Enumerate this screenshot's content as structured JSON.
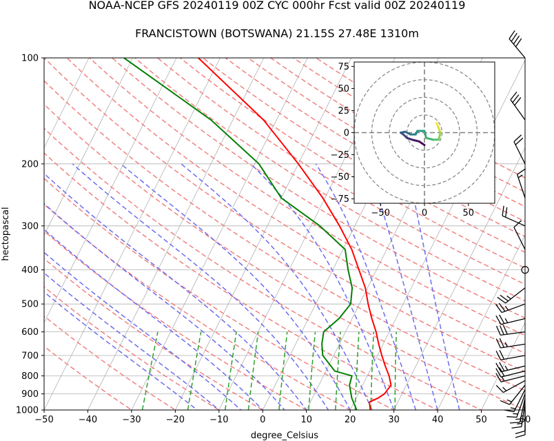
{
  "title_line1": "NOAA-NCEP GFS 20240119 00Z CYC 000hr Fcst valid 00Z 20240119",
  "title_line2": "FRANCISTOWN (BOTSWANA) 21.15S 27.48E 1310m",
  "chart_data": [
    {
      "type": "line",
      "subtype": "skew-t log-p",
      "xlabel": "degree_Celsius",
      "ylabel": "hectopascal",
      "xlim": [
        -50,
        60
      ],
      "ylim": [
        1000,
        100
      ],
      "y_scale": "log",
      "x_ticks": [
        -50,
        -40,
        -30,
        -20,
        -10,
        0,
        10,
        20,
        30,
        40,
        50,
        60
      ],
      "y_ticks": [
        1000,
        900,
        800,
        700,
        600,
        500,
        400,
        300,
        200,
        100
      ],
      "grid": true,
      "series": [
        {
          "role": "temperature",
          "color": "#ff0000",
          "points": [
            [
              1000,
              24.6
            ],
            [
              950,
              23.5
            ],
            [
              925,
              25.0
            ],
            [
              900,
              26.0
            ],
            [
              850,
              26.5
            ],
            [
              800,
              25.0
            ],
            [
              750,
              23.0
            ],
            [
              700,
              21.0
            ],
            [
              650,
              19.0
            ],
            [
              600,
              17.0
            ],
            [
              550,
              14.5
            ],
            [
              500,
              12.0
            ],
            [
              450,
              9.5
            ],
            [
              400,
              6.0
            ],
            [
              350,
              2.0
            ],
            [
              300,
              -3.5
            ],
            [
              250,
              -10.5
            ],
            [
              200,
              -20.0
            ],
            [
              150,
              -33.0
            ],
            [
              100,
              -55.0
            ]
          ]
        },
        {
          "role": "dewpoint",
          "color": "#008000",
          "points": [
            [
              1000,
              21.5
            ],
            [
              925,
              19.0
            ],
            [
              850,
              17.0
            ],
            [
              800,
              16.5
            ],
            [
              775,
              12.0
            ],
            [
              700,
              7.5
            ],
            [
              650,
              6.0
            ],
            [
              600,
              5.0
            ],
            [
              550,
              7.0
            ],
            [
              500,
              8.0
            ],
            [
              450,
              6.5
            ],
            [
              400,
              3.5
            ],
            [
              350,
              0.5
            ],
            [
              300,
              -8.0
            ],
            [
              250,
              -20.0
            ],
            [
              200,
              -29.0
            ],
            [
              150,
              -45.0
            ],
            [
              100,
              -72.0
            ]
          ]
        }
      ],
      "wind_barbs": [
        {
          "p": 1000,
          "u": 0,
          "v": 10
        },
        {
          "p": 975,
          "u": 0,
          "v": 12
        },
        {
          "p": 950,
          "u": 2,
          "v": 14
        },
        {
          "p": 925,
          "u": 3,
          "v": 14
        },
        {
          "p": 900,
          "u": 5,
          "v": 14
        },
        {
          "p": 875,
          "u": 6,
          "v": 12
        },
        {
          "p": 850,
          "u": 8,
          "v": 10
        },
        {
          "p": 825,
          "u": 11,
          "v": 6
        },
        {
          "p": 800,
          "u": 16,
          "v": 4
        },
        {
          "p": 775,
          "u": 20,
          "v": 5
        },
        {
          "p": 750,
          "u": 25,
          "v": 6
        },
        {
          "p": 700,
          "u": 22,
          "v": 4
        },
        {
          "p": 650,
          "u": 26,
          "v": 4
        },
        {
          "p": 600,
          "u": 30,
          "v": 4
        },
        {
          "p": 550,
          "u": 25,
          "v": 6
        },
        {
          "p": 500,
          "u": 22,
          "v": 8
        },
        {
          "p": 450,
          "u": 18,
          "v": 14
        },
        {
          "p": 400,
          "u": 0,
          "v": 0
        },
        {
          "p": 350,
          "u": 5,
          "v": -10
        },
        {
          "p": 300,
          "u": 18,
          "v": -8
        },
        {
          "p": 250,
          "u": 5,
          "v": -15
        },
        {
          "p": 200,
          "u": 10,
          "v": -20
        },
        {
          "p": 150,
          "u": 18,
          "v": -25
        },
        {
          "p": 100,
          "u": 25,
          "v": -30
        }
      ]
    },
    {
      "type": "line",
      "subtype": "hodograph",
      "xlim": [
        -80,
        80
      ],
      "ylim": [
        -80,
        80
      ],
      "x_ticks": [
        -50,
        0,
        50
      ],
      "y_ticks": [
        75,
        50,
        25,
        0,
        -25,
        -50,
        -75
      ],
      "rings": [
        20,
        40,
        60,
        80
      ],
      "colors": [
        "#440154",
        "#3b528b",
        "#21918c",
        "#5ec962",
        "#fde725"
      ],
      "points": [
        [
          0,
          -14
        ],
        [
          -6,
          -10
        ],
        [
          -14,
          -8
        ],
        [
          -20,
          -6
        ],
        [
          -23,
          -3
        ],
        [
          -27,
          0
        ],
        [
          -22,
          1
        ],
        [
          -16,
          -2
        ],
        [
          -10,
          -2
        ],
        [
          -8,
          2
        ],
        [
          0,
          2
        ],
        [
          2,
          -6
        ],
        [
          10,
          -8
        ],
        [
          16,
          -8
        ],
        [
          17,
          -5
        ],
        [
          18,
          0
        ],
        [
          17,
          3
        ],
        [
          15,
          8
        ],
        [
          14,
          11
        ]
      ]
    }
  ]
}
